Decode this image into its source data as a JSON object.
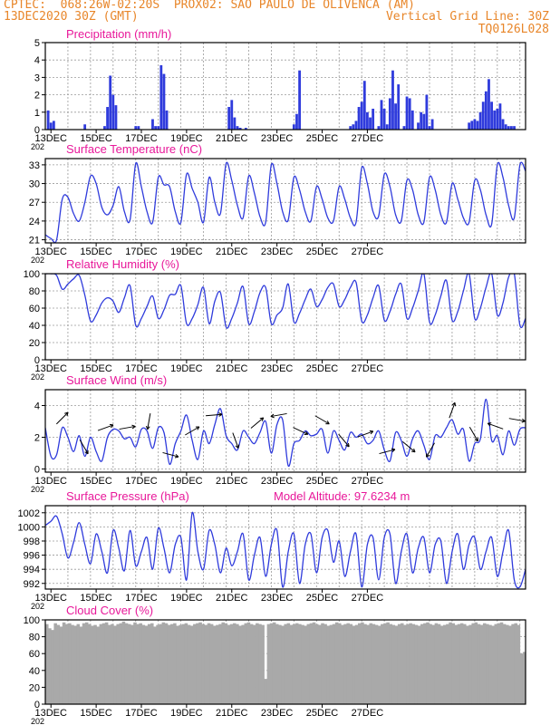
{
  "header": {
    "line1_left": "CPTEC:  068:26W-02:20S  PROX02: SAO PAULO DE OLIVENCA (AM)",
    "line2_left": "13DEC2020 30Z (GMT)",
    "line2_right": "Vertical Grid Line: 30Z",
    "line3_right": "TQ0126L028"
  },
  "colors": {
    "header": "#e8862a",
    "title": "#e8189a",
    "line": "#2f3bdc",
    "bar": "#2f3bdc",
    "cloud": "#a9a9a9",
    "grid": "#9a9a9a"
  },
  "x_ticks": [
    "13DEC",
    "15DEC",
    "17DEC",
    "19DEC",
    "21DEC",
    "23DEC",
    "25DEC",
    "27DEC"
  ],
  "x_tick_extra": "202",
  "chart_data": [
    {
      "type": "bar",
      "title": "Precipitation (mm/h)",
      "ylim": [
        0,
        5
      ],
      "yticks": [
        "0",
        "1",
        "2",
        "3",
        "4",
        "5"
      ],
      "x_hours": [
        3,
        6,
        9,
        42,
        63,
        66,
        69,
        72,
        75,
        96,
        99,
        114,
        117,
        120,
        123,
        126,
        129,
        195,
        198,
        201,
        204,
        207,
        207,
        213,
        264,
        267,
        270,
        324,
        327,
        330,
        333,
        336,
        339,
        342,
        345,
        348,
        354,
        357,
        360,
        363,
        366,
        369,
        372,
        375,
        381,
        384,
        387,
        390,
        396,
        399,
        402,
        405,
        408,
        411,
        450,
        453,
        456,
        459,
        462,
        465,
        468,
        471,
        474,
        477,
        480,
        483,
        486,
        489,
        492,
        495,
        498
      ],
      "values": [
        1.1,
        0.4,
        0.5,
        0.3,
        0.2,
        1.3,
        3.1,
        2.0,
        1.4,
        0.2,
        0.2,
        0.6,
        0.2,
        0.2,
        3.7,
        3.2,
        1.1,
        1.3,
        1.7,
        0.7,
        0.2,
        0.1,
        0.1,
        0.1,
        0.3,
        0.9,
        3.4,
        0.2,
        0.3,
        0.5,
        1.3,
        1.6,
        2.8,
        1.0,
        0.7,
        1.2,
        0.2,
        1.7,
        1.2,
        0.3,
        1.8,
        3.4,
        1.5,
        2.6,
        0.2,
        1.9,
        1.8,
        1.1,
        0.4,
        1.0,
        0.9,
        2.0,
        0.2,
        0.6,
        0.4,
        0.5,
        0.6,
        0.5,
        1.0,
        1.6,
        2.2,
        2.9,
        1.6,
        1.1,
        1.2,
        1.5,
        0.6,
        0.3,
        0.2,
        0.2,
        0.2
      ]
    },
    {
      "type": "line",
      "title": "Surface Temperature (nC)",
      "ylim": [
        20.5,
        34
      ],
      "yticks": [
        "21",
        "24",
        "27",
        "30",
        "33"
      ],
      "ytick_values": [
        21,
        24,
        27,
        30,
        33
      ],
      "x_hours": [
        0,
        6,
        12,
        18,
        24,
        30,
        36,
        42,
        48,
        54,
        60,
        66,
        72,
        78,
        84,
        90,
        96,
        102,
        108,
        114,
        120,
        126,
        132,
        138,
        144,
        150,
        156,
        162,
        168,
        174,
        180,
        186,
        192,
        198,
        204,
        210,
        216,
        222,
        228,
        234,
        240,
        246,
        252,
        258,
        264,
        270,
        276,
        282,
        288,
        294,
        300,
        306,
        312,
        318,
        324,
        330,
        336,
        342,
        348,
        354,
        360,
        366,
        372,
        378,
        384,
        390,
        396,
        402,
        408,
        414,
        420,
        426,
        432,
        438,
        444,
        450,
        456,
        462,
        468,
        474,
        480,
        486,
        492,
        498,
        504,
        510
      ],
      "values": [
        21.8,
        21.2,
        21.0,
        27.5,
        27.8,
        25.2,
        24.0,
        27.0,
        31.2,
        30.0,
        26.2,
        25.0,
        26.5,
        29.5,
        25.5,
        24.2,
        33.2,
        29.5,
        25.5,
        23.8,
        31.0,
        29.8,
        29.5,
        25.5,
        23.8,
        31.5,
        29.2,
        27.0,
        23.8,
        31.0,
        27.0,
        25.2,
        33.2,
        30.5,
        26.5,
        24.5,
        31.2,
        28.5,
        24.7,
        23.8,
        33.0,
        30.0,
        25.5,
        24.2,
        31.0,
        29.0,
        25.5,
        24.0,
        29.5,
        27.5,
        24.5,
        24.0,
        29.5,
        27.5,
        24.5,
        23.8,
        32.5,
        30.0,
        25.5,
        24.8,
        31.5,
        29.5,
        25.0,
        24.0,
        30.5,
        29.0,
        25.0,
        23.8,
        31.0,
        29.0,
        25.0,
        23.8,
        30.0,
        27.5,
        24.5,
        23.8,
        30.5,
        29.0,
        25.0,
        23.5,
        33.0,
        31.0,
        26.5,
        24.5,
        33.0,
        32.0
      ]
    },
    {
      "type": "line",
      "title": "Relative Humidity (%)",
      "ylim": [
        0,
        100
      ],
      "yticks": [
        "0",
        "20",
        "40",
        "60",
        "80",
        "100"
      ],
      "ytick_values": [
        0,
        20,
        40,
        60,
        80,
        100
      ],
      "x_hours": [
        0,
        6,
        12,
        18,
        24,
        30,
        36,
        42,
        48,
        54,
        60,
        66,
        72,
        78,
        84,
        90,
        96,
        102,
        108,
        114,
        120,
        126,
        132,
        138,
        144,
        150,
        156,
        162,
        168,
        174,
        180,
        186,
        192,
        198,
        204,
        210,
        216,
        222,
        228,
        234,
        240,
        246,
        252,
        258,
        264,
        270,
        276,
        282,
        288,
        294,
        300,
        306,
        312,
        318,
        324,
        330,
        336,
        342,
        348,
        354,
        360,
        366,
        372,
        378,
        384,
        390,
        396,
        402,
        408,
        414,
        420,
        426,
        432,
        438,
        444,
        450,
        456,
        462,
        468,
        474,
        480,
        486,
        492,
        498,
        504,
        510
      ],
      "values": [
        100,
        100,
        98,
        82,
        88,
        94,
        98,
        75,
        45,
        52,
        66,
        72,
        68,
        55,
        72,
        86,
        40,
        48,
        62,
        74,
        48,
        58,
        75,
        76,
        86,
        42,
        48,
        64,
        84,
        42,
        68,
        78,
        38,
        48,
        66,
        85,
        42,
        56,
        78,
        84,
        42,
        52,
        60,
        88,
        44,
        54,
        70,
        82,
        62,
        70,
        84,
        88,
        62,
        70,
        84,
        90,
        45,
        52,
        72,
        86,
        46,
        56,
        76,
        88,
        48,
        60,
        80,
        100,
        44,
        52,
        74,
        92,
        46,
        56,
        80,
        100,
        48,
        60,
        84,
        100,
        52,
        66,
        96,
        100,
        40,
        48
      ]
    },
    {
      "type": "line",
      "title": "Surface Wind (m/s)",
      "ylim": [
        -0.2,
        5
      ],
      "yticks": [
        "0",
        "2",
        "4"
      ],
      "ytick_values": [
        0,
        2,
        4
      ],
      "x_hours": [
        0,
        6,
        12,
        18,
        24,
        30,
        36,
        42,
        48,
        54,
        60,
        66,
        72,
        78,
        84,
        90,
        96,
        102,
        108,
        114,
        120,
        126,
        132,
        138,
        144,
        150,
        156,
        162,
        168,
        174,
        180,
        186,
        192,
        198,
        204,
        210,
        216,
        222,
        228,
        234,
        240,
        246,
        252,
        258,
        264,
        270,
        276,
        282,
        288,
        294,
        300,
        306,
        312,
        318,
        324,
        330,
        336,
        342,
        348,
        354,
        360,
        366,
        372,
        378,
        384,
        390,
        396,
        402,
        408,
        414,
        420,
        426,
        432,
        438,
        444,
        450,
        456,
        462,
        468,
        474,
        480,
        486,
        492,
        498,
        504,
        510
      ],
      "values": [
        2.6,
        0.8,
        0.9,
        2.6,
        2.0,
        1.1,
        2.1,
        0.8,
        2.0,
        1.1,
        0.5,
        2.0,
        2.5,
        2.4,
        1.9,
        2.0,
        1.4,
        2.5,
        2.4,
        1.3,
        2.6,
        2.3,
        0.3,
        1.6,
        2.4,
        3.4,
        1.8,
        0.6,
        2.4,
        1.6,
        2.8,
        3.8,
        2.1,
        1.6,
        1.2,
        2.4,
        2.0,
        1.6,
        2.3,
        3.0,
        1.0,
        2.8,
        3.1,
        0.2,
        1.6,
        1.8,
        2.4,
        2.1,
        2.2,
        2.5,
        1.0,
        2.4,
        1.8,
        1.2,
        2.3,
        2.0,
        2.2,
        1.6,
        1.8,
        2.4,
        1.2,
        0.5,
        2.3,
        1.8,
        0.8,
        1.9,
        2.4,
        1.5,
        0.6,
        2.1,
        2.0,
        2.6,
        3.1,
        2.2,
        2.5,
        0.5,
        1.6,
        1.9,
        4.4,
        1.8,
        2.1,
        0.9,
        2.4,
        1.5,
        2.5,
        2.6
      ]
    },
    {
      "type": "line",
      "title": "Surface Pressure (hPa)",
      "annotation": "Model Altitude: 97.6234 m",
      "ylim": [
        991.2,
        1003
      ],
      "yticks": [
        "992",
        "994",
        "996",
        "998",
        "1000",
        "1002"
      ],
      "ytick_values": [
        992,
        994,
        996,
        998,
        1000,
        1002
      ],
      "x_hours": [
        0,
        6,
        12,
        18,
        24,
        30,
        36,
        42,
        48,
        54,
        60,
        66,
        72,
        78,
        84,
        90,
        96,
        102,
        108,
        114,
        120,
        126,
        132,
        138,
        144,
        150,
        156,
        162,
        168,
        174,
        180,
        186,
        192,
        198,
        204,
        210,
        216,
        222,
        228,
        234,
        240,
        246,
        252,
        258,
        264,
        270,
        276,
        282,
        288,
        294,
        300,
        306,
        312,
        318,
        324,
        330,
        336,
        342,
        348,
        354,
        360,
        366,
        372,
        378,
        384,
        390,
        396,
        402,
        408,
        414,
        420,
        426,
        432,
        438,
        444,
        450,
        456,
        462,
        468,
        474,
        480,
        486,
        492,
        498,
        504,
        510
      ],
      "values": [
        1000.2,
        1000.8,
        1001.5,
        999.0,
        995.6,
        997.8,
        1000.6,
        997.5,
        994.8,
        999.0,
        996.5,
        993.5,
        999.5,
        997.0,
        993.8,
        999.5,
        994.5,
        996.5,
        998.5,
        994.0,
        999.8,
        997.0,
        993.5,
        997.5,
        998.5,
        992.5,
        1002.0,
        996.5,
        994.0,
        999.5,
        997.5,
        993.5,
        997.0,
        994.5,
        996.5,
        999.0,
        992.5,
        996.0,
        998.5,
        993.0,
        997.5,
        999.5,
        991.5,
        996.5,
        999.0,
        992.0,
        997.5,
        999.0,
        993.5,
        998.5,
        999.5,
        995.0,
        998.0,
        993.0,
        996.5,
        999.0,
        991.5,
        997.5,
        998.5,
        992.5,
        998.5,
        999.0,
        992.0,
        996.5,
        999.0,
        993.5,
        997.0,
        998.5,
        993.5,
        997.5,
        998.0,
        992.0,
        996.5,
        999.0,
        994.0,
        997.5,
        998.5,
        994.0,
        996.5,
        998.5,
        993.0,
        996.5,
        999.5,
        992.5,
        991.5,
        994.0
      ]
    },
    {
      "type": "bar",
      "title": "Cloud Cover (%)",
      "ylim": [
        0,
        100
      ],
      "yticks": [
        "0",
        "20",
        "40",
        "60",
        "80",
        "100"
      ],
      "values_per_3h": [
        95,
        90,
        88,
        96,
        94,
        92,
        97,
        95,
        96,
        94,
        93,
        95,
        92,
        96,
        97,
        95,
        93,
        94,
        92,
        95,
        96,
        97,
        94,
        95,
        93,
        95,
        96,
        98,
        96,
        95,
        94,
        97,
        95,
        96,
        94,
        93,
        95,
        96,
        92,
        94,
        95,
        97,
        96,
        94,
        95,
        96,
        93,
        94,
        95,
        96,
        94,
        93,
        95,
        96,
        97,
        95,
        94,
        96,
        95,
        93,
        94,
        95,
        97,
        96,
        94,
        95,
        96,
        95,
        93,
        94,
        96,
        97,
        95,
        94,
        96,
        95,
        94,
        30,
        95,
        96,
        97,
        95,
        94,
        93,
        95,
        96,
        94,
        95,
        96,
        95,
        94,
        93,
        95,
        96,
        97,
        95,
        94,
        96,
        95,
        93,
        94,
        95,
        97,
        96,
        94,
        95,
        96,
        95,
        93,
        94,
        96,
        97,
        95,
        94,
        96,
        95,
        94,
        93,
        95,
        96,
        97,
        95,
        94,
        93,
        95,
        96,
        94,
        95,
        96,
        95,
        94,
        93,
        95,
        96,
        97,
        95,
        94,
        96,
        95,
        93,
        94,
        95,
        97,
        96,
        94,
        95,
        96,
        95,
        93,
        94,
        96,
        97,
        95,
        94,
        96,
        95,
        94,
        93,
        95,
        96,
        97,
        95,
        94,
        93,
        95,
        96,
        94,
        60,
        62
      ]
    }
  ]
}
